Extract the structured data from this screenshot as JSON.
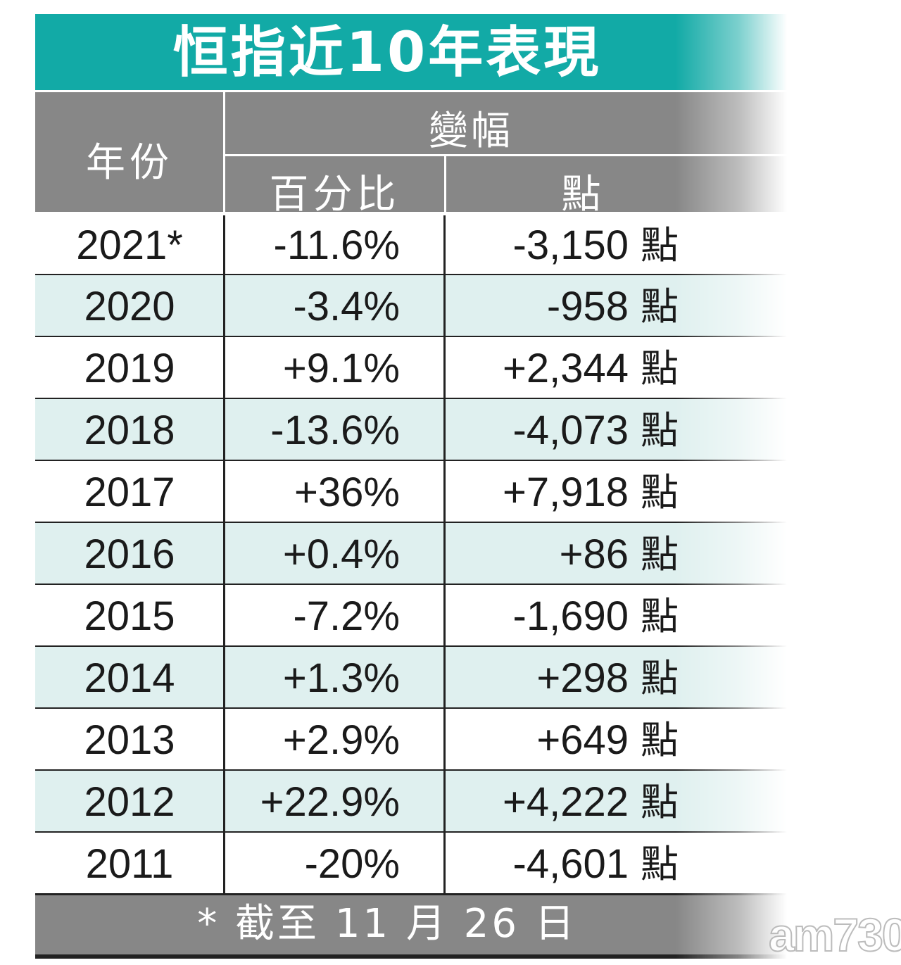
{
  "title": "恒指近10年表現",
  "header": {
    "year": "年份",
    "change": "變幅",
    "percent": "百分比",
    "points": "點"
  },
  "rows": [
    {
      "year": "2021*",
      "pct": "-11.6%",
      "pts": "-3,150",
      "unit": "點"
    },
    {
      "year": "2020",
      "pct": "-3.4%",
      "pts": "-958",
      "unit": "點"
    },
    {
      "year": "2019",
      "pct": "+9.1%",
      "pts": "+2,344",
      "unit": "點"
    },
    {
      "year": "2018",
      "pct": "-13.6%",
      "pts": "-4,073",
      "unit": "點"
    },
    {
      "year": "2017",
      "pct": "+36%",
      "pts": "+7,918",
      "unit": "點"
    },
    {
      "year": "2016",
      "pct": "+0.4%",
      "pts": "+86",
      "unit": "點"
    },
    {
      "year": "2015",
      "pct": "-7.2%",
      "pts": "-1,690",
      "unit": "點"
    },
    {
      "year": "2014",
      "pct": "+1.3%",
      "pts": "+298",
      "unit": "點"
    },
    {
      "year": "2013",
      "pct": "+2.9%",
      "pts": "+649",
      "unit": "點"
    },
    {
      "year": "2012",
      "pct": "+22.9%",
      "pts": "+4,222",
      "unit": "點"
    },
    {
      "year": "2011",
      "pct": "-20%",
      "pts": "-4,601",
      "unit": "點"
    }
  ],
  "footer": "* 截至 11 月 26 日",
  "watermark": "am730",
  "colors": {
    "title_bg": "#12aaa6",
    "header_bg": "#878787",
    "alt_row_bg": "#dff0ef"
  }
}
